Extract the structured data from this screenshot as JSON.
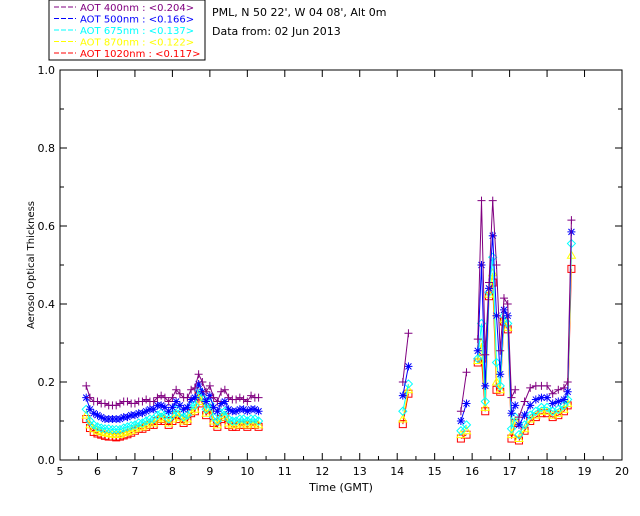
{
  "header": {
    "site": "PML, N 50 22', W 04 08', Alt 0m",
    "date_line": "Data from: 02 Jun 2013"
  },
  "legend": [
    {
      "label": "AOT  400nm : <0.204>",
      "color": "#800080"
    },
    {
      "label": "AOT  500nm : <0.166>",
      "color": "#0000ff"
    },
    {
      "label": "AOT  675nm : <0.137>",
      "color": "#00ffff"
    },
    {
      "label": "AOT  870nm : <0.122>",
      "color": "#ffff00"
    },
    {
      "label": "AOT 1020nm : <0.117>",
      "color": "#ff0000"
    }
  ],
  "chart_data": {
    "type": "line",
    "title": "",
    "xlabel": "Time (GMT)",
    "ylabel": "Aerosol Optical Thickness",
    "xlim": [
      5,
      20
    ],
    "ylim": [
      0.0,
      1.0
    ],
    "xticks": [
      "5",
      "6",
      "7",
      "8",
      "9",
      "10",
      "11",
      "12",
      "13",
      "14",
      "15",
      "16",
      "17",
      "18",
      "19",
      "20"
    ],
    "yticks": [
      "0.0",
      "0.2",
      "0.4",
      "0.6",
      "0.8",
      "1.0"
    ],
    "grid": false,
    "legend_position": "top-left",
    "x": [
      5.7,
      5.8,
      5.9,
      6.0,
      6.1,
      6.2,
      6.3,
      6.4,
      6.5,
      6.6,
      6.7,
      6.8,
      6.9,
      7.0,
      7.1,
      7.2,
      7.3,
      7.4,
      7.5,
      7.6,
      7.7,
      7.8,
      7.9,
      8.0,
      8.1,
      8.2,
      8.3,
      8.4,
      8.5,
      8.6,
      8.7,
      8.8,
      8.9,
      9.0,
      9.1,
      9.2,
      9.3,
      9.4,
      9.5,
      9.6,
      9.7,
      9.8,
      9.9,
      10.0,
      10.1,
      10.2,
      10.3,
      null,
      14.15,
      14.3,
      null,
      15.7,
      15.85,
      null,
      16.15,
      16.25,
      16.35,
      16.45,
      16.55,
      16.65,
      16.75,
      16.85,
      16.95,
      17.05,
      17.15,
      null,
      17.25,
      17.4,
      17.55,
      17.7,
      17.85,
      18.0,
      18.15,
      18.3,
      18.45,
      18.55,
      18.65
    ],
    "series": [
      {
        "name": "AOT  400nm : <0.204>",
        "color": "#800080",
        "marker": "plus",
        "values": [
          0.19,
          0.16,
          0.15,
          0.15,
          0.145,
          0.145,
          0.14,
          0.14,
          0.14,
          0.145,
          0.15,
          0.15,
          0.145,
          0.145,
          0.15,
          0.15,
          0.155,
          0.15,
          0.15,
          0.16,
          0.165,
          0.16,
          0.15,
          0.16,
          0.18,
          0.17,
          0.16,
          0.16,
          0.18,
          0.185,
          0.22,
          0.2,
          0.175,
          0.19,
          0.16,
          0.15,
          0.175,
          0.18,
          0.16,
          0.155,
          0.155,
          0.16,
          0.155,
          0.15,
          0.165,
          0.16,
          0.16,
          null,
          0.2,
          0.325,
          null,
          0.125,
          0.225,
          null,
          0.31,
          0.665,
          0.27,
          0.455,
          0.665,
          0.5,
          0.28,
          0.415,
          0.4,
          0.16,
          0.18,
          null,
          0.11,
          0.15,
          0.185,
          0.19,
          0.19,
          0.19,
          0.17,
          0.18,
          0.185,
          0.2,
          0.615
        ]
      },
      {
        "name": "AOT  500nm : <0.166>",
        "color": "#0000ff",
        "marker": "star",
        "values": [
          0.16,
          0.13,
          0.12,
          0.115,
          0.11,
          0.105,
          0.105,
          0.105,
          0.105,
          0.105,
          0.11,
          0.11,
          0.115,
          0.115,
          0.12,
          0.12,
          0.125,
          0.13,
          0.13,
          0.14,
          0.14,
          0.135,
          0.125,
          0.135,
          0.15,
          0.14,
          0.13,
          0.135,
          0.155,
          0.16,
          0.195,
          0.175,
          0.15,
          0.165,
          0.135,
          0.125,
          0.145,
          0.15,
          0.13,
          0.125,
          0.125,
          0.13,
          0.13,
          0.125,
          0.13,
          0.13,
          0.125,
          null,
          0.165,
          0.24,
          null,
          0.1,
          0.145,
          null,
          0.28,
          0.5,
          0.19,
          0.44,
          0.575,
          0.37,
          0.22,
          0.385,
          0.37,
          0.12,
          0.14,
          null,
          0.09,
          0.115,
          0.14,
          0.155,
          0.16,
          0.16,
          0.145,
          0.15,
          0.155,
          0.175,
          0.585
        ]
      },
      {
        "name": "AOT  675nm : <0.137>",
        "color": "#00ffff",
        "marker": "diamond",
        "values": [
          0.13,
          0.1,
          0.09,
          0.085,
          0.082,
          0.08,
          0.08,
          0.078,
          0.078,
          0.078,
          0.082,
          0.085,
          0.088,
          0.09,
          0.095,
          0.095,
          0.1,
          0.105,
          0.105,
          0.115,
          0.12,
          0.115,
          0.105,
          0.115,
          0.13,
          0.12,
          0.11,
          0.115,
          0.14,
          0.14,
          0.18,
          0.16,
          0.13,
          0.145,
          0.11,
          0.1,
          0.12,
          0.125,
          0.105,
          0.1,
          0.1,
          0.105,
          0.105,
          0.1,
          0.105,
          0.105,
          0.1,
          null,
          0.125,
          0.195,
          null,
          0.075,
          0.09,
          null,
          0.26,
          0.35,
          0.15,
          0.43,
          0.52,
          0.25,
          0.19,
          0.37,
          0.35,
          0.08,
          0.11,
          null,
          0.065,
          0.09,
          0.115,
          0.125,
          0.135,
          0.135,
          0.125,
          0.13,
          0.14,
          0.155,
          0.555
        ]
      },
      {
        "name": "AOT  870nm : <0.122>",
        "color": "#ffff00",
        "marker": "triangle",
        "values": [
          0.115,
          0.09,
          0.08,
          0.075,
          0.072,
          0.07,
          0.068,
          0.066,
          0.065,
          0.066,
          0.07,
          0.072,
          0.075,
          0.08,
          0.085,
          0.085,
          0.09,
          0.095,
          0.095,
          0.105,
          0.11,
          0.105,
          0.095,
          0.105,
          0.12,
          0.11,
          0.1,
          0.105,
          0.125,
          0.13,
          0.17,
          0.15,
          0.12,
          0.135,
          0.1,
          0.09,
          0.11,
          0.115,
          0.095,
          0.09,
          0.09,
          0.095,
          0.095,
          0.09,
          0.095,
          0.095,
          0.09,
          null,
          0.105,
          0.18,
          null,
          0.065,
          0.075,
          null,
          0.255,
          0.3,
          0.135,
          0.425,
          0.48,
          0.2,
          0.18,
          0.36,
          0.34,
          0.065,
          0.1,
          null,
          0.055,
          0.08,
          0.105,
          0.115,
          0.125,
          0.125,
          0.115,
          0.12,
          0.13,
          0.145,
          0.525
        ]
      },
      {
        "name": "AOT 1020nm : <0.117>",
        "color": "#ff0000",
        "marker": "square",
        "values": [
          0.105,
          0.082,
          0.072,
          0.068,
          0.065,
          0.062,
          0.06,
          0.06,
          0.058,
          0.06,
          0.063,
          0.066,
          0.07,
          0.075,
          0.08,
          0.08,
          0.085,
          0.09,
          0.09,
          0.1,
          0.105,
          0.1,
          0.09,
          0.1,
          0.115,
          0.105,
          0.095,
          0.1,
          0.12,
          0.125,
          0.165,
          0.145,
          0.115,
          0.13,
          0.095,
          0.085,
          0.105,
          0.11,
          0.09,
          0.085,
          0.085,
          0.09,
          0.09,
          0.085,
          0.09,
          0.09,
          0.085,
          null,
          0.092,
          0.17,
          null,
          0.055,
          0.065,
          null,
          0.25,
          0.26,
          0.125,
          0.42,
          0.455,
          0.18,
          0.175,
          0.355,
          0.335,
          0.055,
          0.095,
          null,
          0.05,
          0.075,
          0.1,
          0.11,
          0.12,
          0.12,
          0.11,
          0.115,
          0.125,
          0.14,
          0.49
        ]
      }
    ]
  }
}
